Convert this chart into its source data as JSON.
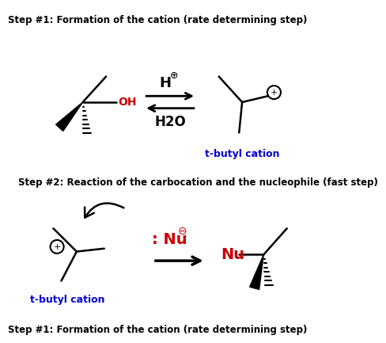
{
  "title1": "Step #1: Formation of the cation (rate determining step)",
  "title2": "Step #2: Reaction of the carbocation and the nucleophile (fast step)",
  "label_tbutyl1": "t-butyl cation",
  "label_tbutyl2": "t-butyl cation",
  "label_h": "H",
  "label_h2o": "H2O",
  "label_nu_reagent": ": Nu",
  "label_nu_product": "Nu",
  "label_oh": "OH",
  "bg_color": "#ffffff",
  "black": "#000000",
  "red": "#cc0000",
  "blue": "#0000cc"
}
